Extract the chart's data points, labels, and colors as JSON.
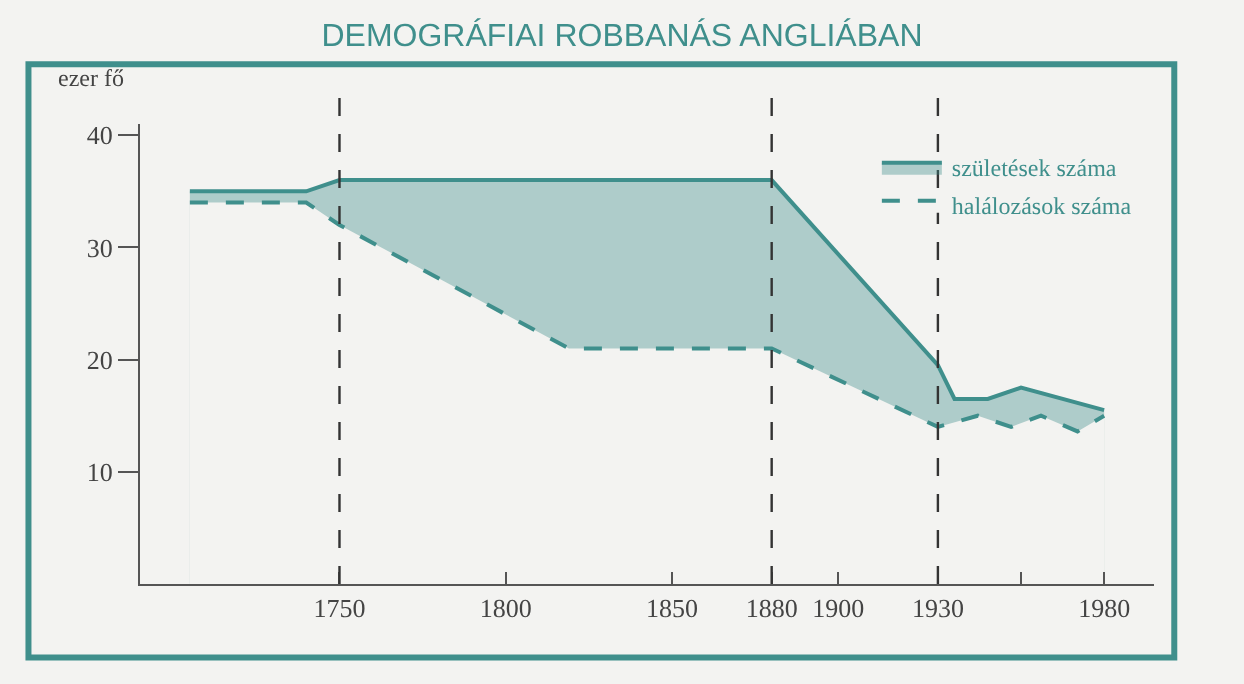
{
  "chart_data": {
    "type": "area",
    "title": "DEMOGRÁFIAI ROBBANÁS ANGLIÁBAN",
    "ylabel": "ezer fő",
    "series": [
      {
        "name": "halálozások száma",
        "color": "#3f8f8c",
        "line_style": "dashed",
        "x": [
          1705,
          1740,
          1750,
          1819,
          1880,
          1930,
          1942,
          1952,
          1961,
          1972,
          1980
        ],
        "values": [
          34,
          34,
          32,
          21,
          21,
          14,
          15,
          14,
          15,
          13.6,
          15
        ]
      },
      {
        "name": "születések száma",
        "color": "#3f8f8c",
        "line_style": "solid",
        "x": [
          1705,
          1740,
          1750,
          1880,
          1930,
          1935,
          1945,
          1955,
          1980
        ],
        "values": [
          35,
          35,
          36,
          36,
          19.5,
          16.5,
          16.5,
          17.5,
          15.5
        ]
      }
    ],
    "xlim": [
      1690,
      1995
    ],
    "ylim": [
      0,
      41
    ],
    "xticks": [
      1750,
      1800,
      1850,
      1880,
      1900,
      1930,
      {
        "value": 1955,
        "label": null
      },
      1980
    ],
    "yticks": [
      10,
      20,
      30,
      40
    ],
    "ref_lines": [
      {
        "axis": "x",
        "value": 1750,
        "color": "#333333",
        "line_style": "dashed"
      },
      {
        "axis": "x",
        "value": 1880,
        "color": "#333333",
        "line_style": "dashed"
      },
      {
        "axis": "x",
        "value": 1930,
        "color": "#333333",
        "line_style": "dashed"
      }
    ],
    "grid": false,
    "legend": "top right",
    "marker": "none"
  }
}
